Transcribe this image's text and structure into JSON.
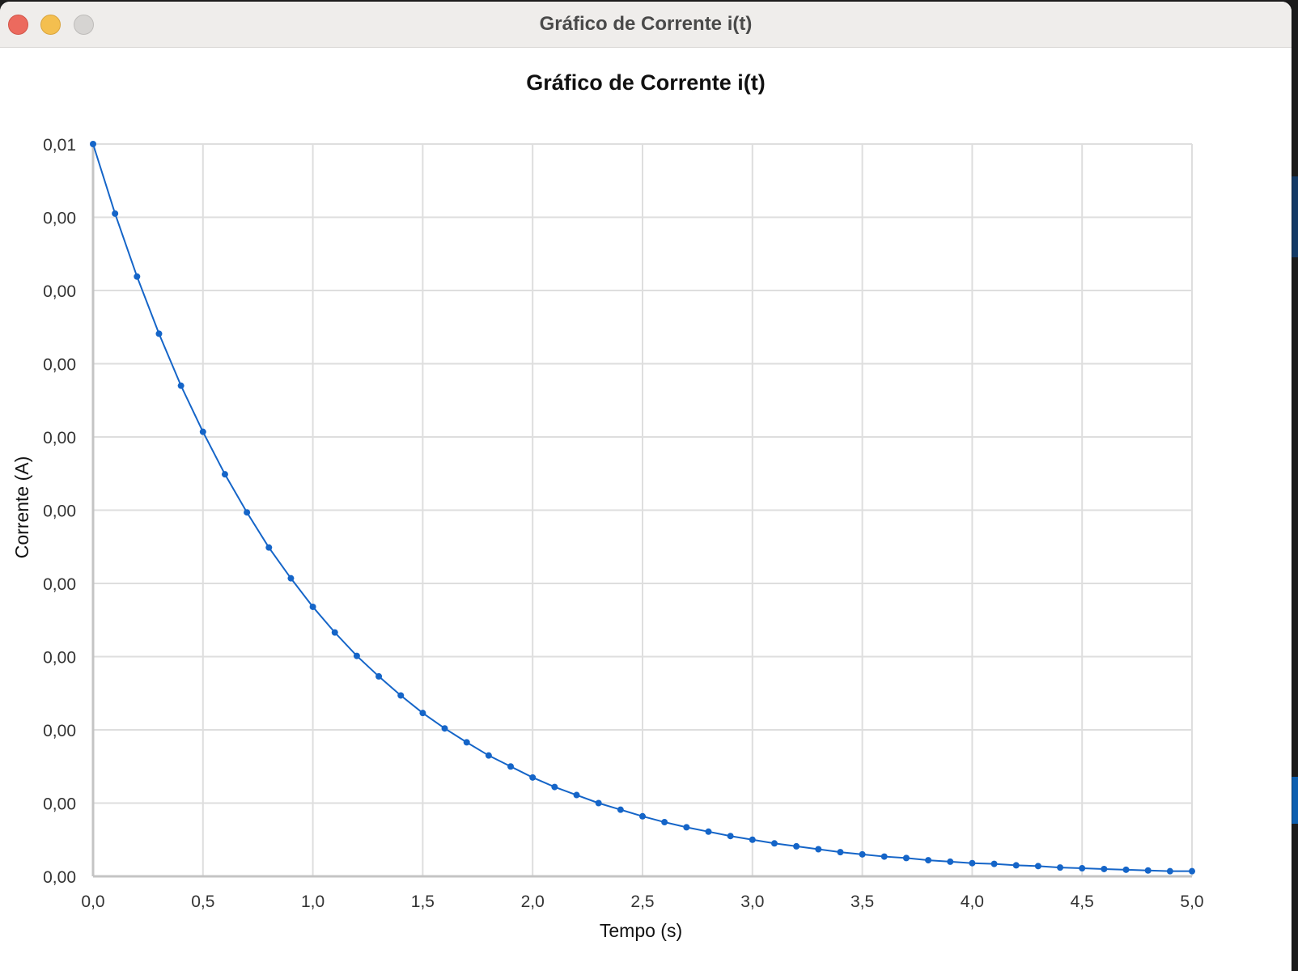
{
  "window": {
    "title": "Gráfico de Corrente i(t)"
  },
  "chart_data": {
    "type": "line",
    "title": "Gráfico de Corrente i(t)",
    "xlabel": "Tempo (s)",
    "ylabel": "Corrente (A)",
    "xlim": [
      0,
      5
    ],
    "ylim": [
      0,
      0.01
    ],
    "grid": true,
    "legend": "none",
    "colors": {
      "line": "#1565c8",
      "grid": "#dedede",
      "axis": "#c4c4c4"
    },
    "x_ticks": [
      "0,0",
      "0,5",
      "1,0",
      "1,5",
      "2,0",
      "2,5",
      "3,0",
      "3,5",
      "4,0",
      "4,5",
      "5,0"
    ],
    "y_ticks": [
      "0,00",
      "0,00",
      "0,00",
      "0,00",
      "0,00",
      "0,00",
      "0,00",
      "0,00",
      "0,00",
      "0,00",
      "0,01"
    ],
    "series": [
      {
        "x": [
          0,
          0.1,
          0.2,
          0.3,
          0.4,
          0.5,
          0.6,
          0.7,
          0.8,
          0.9,
          1.0,
          1.1,
          1.2,
          1.3,
          1.4,
          1.5,
          1.6,
          1.7,
          1.8,
          1.9,
          2.0,
          2.1,
          2.2,
          2.3,
          2.4,
          2.5,
          2.6,
          2.7,
          2.8,
          2.9,
          3.0,
          3.1,
          3.2,
          3.3,
          3.4,
          3.5,
          3.6,
          3.7,
          3.8,
          3.9,
          4.0,
          4.1,
          4.2,
          4.3,
          4.4,
          4.5,
          4.6,
          4.7,
          4.8,
          4.9,
          5.0
        ],
        "values": [
          0.01,
          0.00905,
          0.00819,
          0.00741,
          0.0067,
          0.00607,
          0.00549,
          0.00497,
          0.00449,
          0.00407,
          0.00368,
          0.00333,
          0.00301,
          0.00273,
          0.00247,
          0.00223,
          0.00202,
          0.00183,
          0.00165,
          0.0015,
          0.00135,
          0.00122,
          0.00111,
          0.001,
          0.00091,
          0.00082,
          0.00074,
          0.00067,
          0.00061,
          0.00055,
          0.0005,
          0.00045,
          0.00041,
          0.00037,
          0.00033,
          0.0003,
          0.00027,
          0.00025,
          0.00022,
          0.0002,
          0.00018,
          0.00017,
          0.00015,
          0.00014,
          0.00012,
          0.00011,
          0.0001,
          9e-05,
          8e-05,
          7e-05,
          7e-05
        ]
      }
    ]
  }
}
